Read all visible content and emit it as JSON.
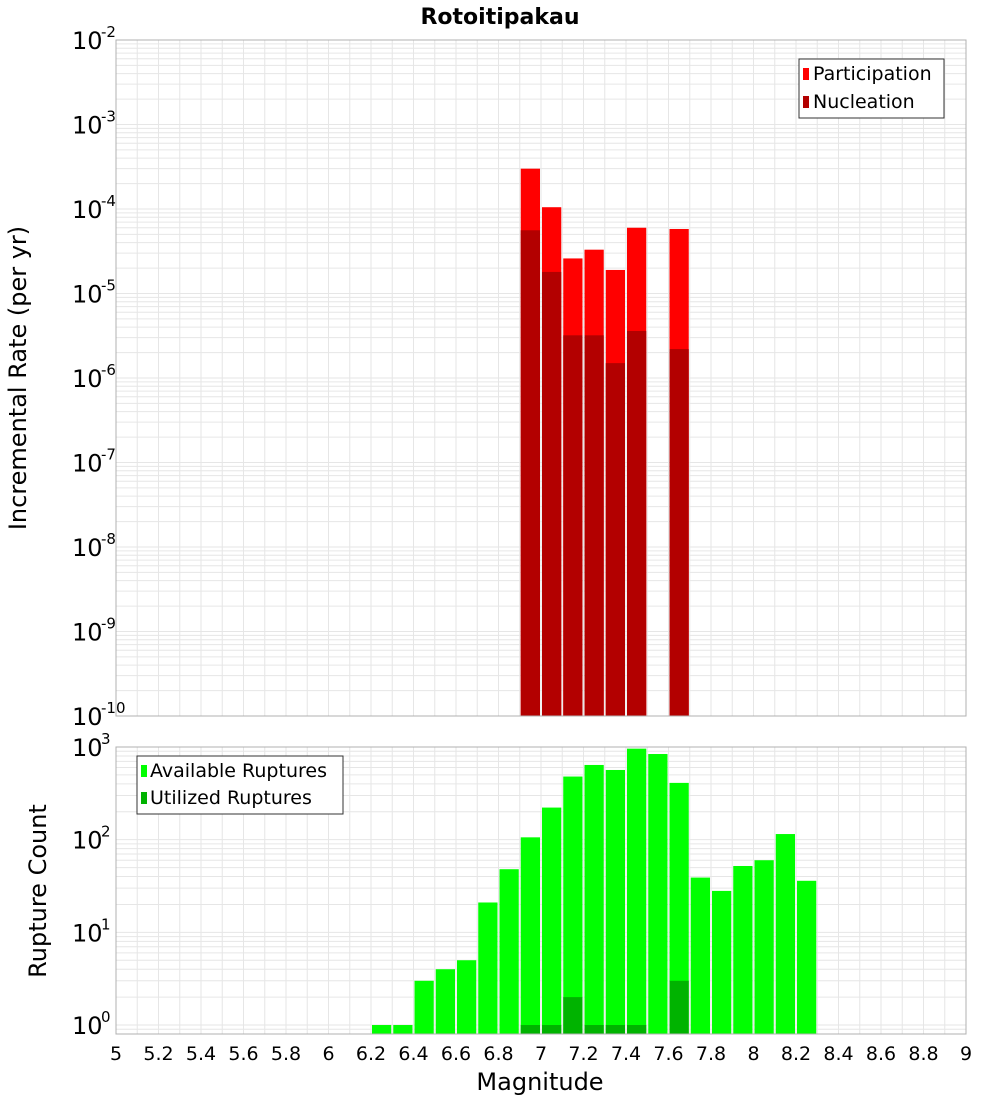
{
  "title": "Rotoitipakau",
  "xaxis": {
    "label": "Magnitude",
    "range": [
      5,
      9
    ],
    "ticks": [
      "5",
      "5.2",
      "5.4",
      "5.6",
      "5.8",
      "6",
      "6.2",
      "6.4",
      "6.6",
      "6.8",
      "7",
      "7.2",
      "7.4",
      "7.6",
      "7.8",
      "8",
      "8.2",
      "8.4",
      "8.6",
      "8.8",
      "9"
    ]
  },
  "colors": {
    "participation": "#ff0000",
    "nucleation": "#b30000",
    "available": "#00ff00",
    "utilized": "#00b300",
    "grid": "#e6e6e6",
    "frame": "#b0b0b0"
  },
  "chart_data": [
    {
      "type": "bar",
      "title": "Rotoitipakau",
      "ylabel": "Incremental Rate (per yr)",
      "yscale": "log",
      "ylim": [
        1e-10,
        0.01
      ],
      "yticks": [
        {
          "base": "10",
          "exp": "-10",
          "value": 1e-10
        },
        {
          "base": "10",
          "exp": "-9",
          "value": 1e-09
        },
        {
          "base": "10",
          "exp": "-8",
          "value": 1e-08
        },
        {
          "base": "10",
          "exp": "-7",
          "value": 1e-07
        },
        {
          "base": "10",
          "exp": "-6",
          "value": 1e-06
        },
        {
          "base": "10",
          "exp": "-5",
          "value": 1e-05
        },
        {
          "base": "10",
          "exp": "-4",
          "value": 0.0001
        },
        {
          "base": "10",
          "exp": "-3",
          "value": 0.001
        },
        {
          "base": "10",
          "exp": "-2",
          "value": 0.01
        }
      ],
      "legend": {
        "position": "top-right",
        "entries": [
          "Participation",
          "Nucleation"
        ]
      },
      "x": [
        6.95,
        7.05,
        7.15,
        7.25,
        7.35,
        7.45,
        7.65
      ],
      "series": [
        {
          "name": "Participation",
          "values": [
            0.0003,
            0.000105,
            2.6e-05,
            3.3e-05,
            1.9e-05,
            6e-05,
            5.8e-05
          ]
        },
        {
          "name": "Nucleation",
          "values": [
            5.6e-05,
            1.8e-05,
            3.2e-06,
            3.2e-06,
            1.5e-06,
            3.6e-06,
            2.2e-06
          ]
        }
      ]
    },
    {
      "type": "bar",
      "ylabel": "Rupture Count",
      "yscale": "log",
      "ylim": [
        0.8,
        1000
      ],
      "yticks": [
        {
          "base": "10",
          "exp": "0",
          "value": 1
        },
        {
          "base": "10",
          "exp": "1",
          "value": 10
        },
        {
          "base": "10",
          "exp": "2",
          "value": 100
        },
        {
          "base": "10",
          "exp": "3",
          "value": 1000
        }
      ],
      "legend": {
        "position": "top-left",
        "entries": [
          "Available Ruptures",
          "Utilized Ruptures"
        ]
      },
      "x": [
        6.25,
        6.35,
        6.45,
        6.55,
        6.65,
        6.75,
        6.85,
        6.95,
        7.05,
        7.15,
        7.25,
        7.35,
        7.45,
        7.55,
        7.65,
        7.75,
        7.85,
        7.95,
        8.05,
        8.15,
        8.25
      ],
      "series": [
        {
          "name": "Available Ruptures",
          "values": [
            1,
            1,
            3,
            4,
            5,
            21,
            48,
            106,
            222,
            480,
            640,
            565,
            960,
            840,
            410,
            39,
            28,
            52,
            60,
            115,
            36
          ]
        },
        {
          "name": "Utilized Ruptures",
          "values": [
            0,
            0,
            0,
            0,
            0,
            0,
            0,
            1,
            1,
            2,
            1,
            1,
            1,
            0,
            3,
            0,
            0,
            0,
            0,
            0,
            0
          ]
        }
      ]
    }
  ]
}
